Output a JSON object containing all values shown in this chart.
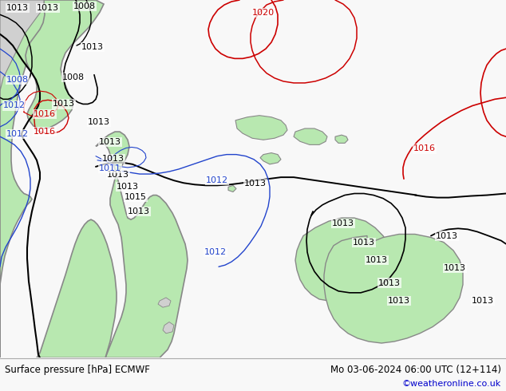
{
  "footer_left": "Surface pressure [hPa] ECMWF",
  "footer_right": "Mo 03-06-2024 06:00 UTC (12+114)",
  "footer_url": "©weatheronline.co.uk",
  "footer_url_color": "#0000cc",
  "bg_color": "#f0f0f0",
  "land_green": "#b8e8b0",
  "land_gray": "#c8c8c8",
  "coast_color": "#888888",
  "contour_black": "#000000",
  "contour_red": "#cc0000",
  "contour_blue": "#2244cc",
  "figsize": [
    6.34,
    4.9
  ],
  "dpi": 100
}
